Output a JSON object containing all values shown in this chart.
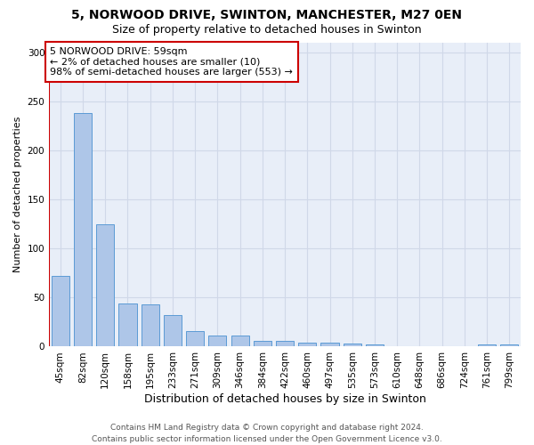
{
  "title_line1": "5, NORWOOD DRIVE, SWINTON, MANCHESTER, M27 0EN",
  "title_line2": "Size of property relative to detached houses in Swinton",
  "xlabel": "Distribution of detached houses by size in Swinton",
  "ylabel": "Number of detached properties",
  "categories": [
    "45sqm",
    "82sqm",
    "120sqm",
    "158sqm",
    "195sqm",
    "233sqm",
    "271sqm",
    "309sqm",
    "346sqm",
    "384sqm",
    "422sqm",
    "460sqm",
    "497sqm",
    "535sqm",
    "573sqm",
    "610sqm",
    "648sqm",
    "686sqm",
    "724sqm",
    "761sqm",
    "799sqm"
  ],
  "values": [
    72,
    238,
    125,
    44,
    43,
    32,
    16,
    11,
    11,
    6,
    6,
    4,
    4,
    3,
    2,
    0,
    0,
    0,
    0,
    2,
    2
  ],
  "bar_color": "#aec6e8",
  "bar_edge_color": "#5b9bd5",
  "vline_color": "#cc0000",
  "vline_x": -0.5,
  "annotation_text": "5 NORWOOD DRIVE: 59sqm\n← 2% of detached houses are smaller (10)\n98% of semi-detached houses are larger (553) →",
  "annotation_box_color": "#ffffff",
  "annotation_box_edgecolor": "#cc0000",
  "ylim": [
    0,
    310
  ],
  "yticks": [
    0,
    50,
    100,
    150,
    200,
    250,
    300
  ],
  "grid_color": "#d0d8e8",
  "background_color": "#e8eef8",
  "footer_text": "Contains HM Land Registry data © Crown copyright and database right 2024.\nContains public sector information licensed under the Open Government Licence v3.0.",
  "title_fontsize": 10,
  "subtitle_fontsize": 9,
  "xlabel_fontsize": 9,
  "ylabel_fontsize": 8,
  "tick_fontsize": 7.5,
  "annotation_fontsize": 8,
  "footer_fontsize": 6.5
}
